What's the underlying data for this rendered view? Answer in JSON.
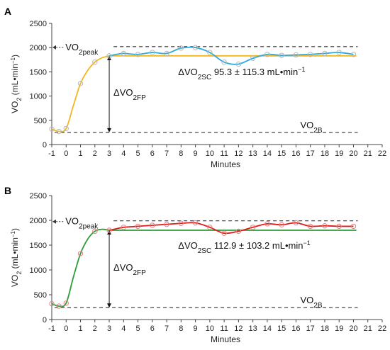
{
  "chart_data": [
    {
      "panel": "A",
      "type": "line",
      "xlabel": "Minutes",
      "ylabel": "VO",
      "ylabel_sub": "2",
      "ylabel_unit": "(mL•min",
      "ylabel_unit_sup": "−1",
      "ylabel_unit_end": ")",
      "xlim": [
        -1,
        22
      ],
      "ylim": [
        0,
        2500
      ],
      "x_ticks": [
        "-1",
        "0",
        "1",
        "2",
        "3",
        "4",
        "5",
        "6",
        "7",
        "8",
        "9",
        "10",
        "11",
        "12",
        "13",
        "14",
        "15",
        "16",
        "17",
        "18",
        "19",
        "20",
        "21",
        "22"
      ],
      "y_ticks": [
        "0",
        "500",
        "1000",
        "1500",
        "2000",
        "2500"
      ],
      "colors": {
        "onset": "#f2b71e",
        "steady": "#2ba8df",
        "fit": "#f2b71e",
        "points": "#b8b8b8"
      },
      "points": [
        {
          "x": -1,
          "y": 320
        },
        {
          "x": -0.5,
          "y": 270
        },
        {
          "x": 0,
          "y": 330
        },
        {
          "x": 1,
          "y": 1260
        },
        {
          "x": 2,
          "y": 1700
        },
        {
          "x": 3,
          "y": 1830
        },
        {
          "x": 4,
          "y": 1880
        },
        {
          "x": 5,
          "y": 1860
        },
        {
          "x": 6,
          "y": 1900
        },
        {
          "x": 7,
          "y": 1880
        },
        {
          "x": 8,
          "y": 1990
        },
        {
          "x": 9,
          "y": 2000
        },
        {
          "x": 10,
          "y": 1900
        },
        {
          "x": 11,
          "y": 1700
        },
        {
          "x": 12,
          "y": 1660
        },
        {
          "x": 13,
          "y": 1780
        },
        {
          "x": 14,
          "y": 1860
        },
        {
          "x": 15,
          "y": 1840
        },
        {
          "x": 16,
          "y": 1850
        },
        {
          "x": 17,
          "y": 1860
        },
        {
          "x": 18,
          "y": 1880
        },
        {
          "x": 19,
          "y": 1900
        },
        {
          "x": 20,
          "y": 1860
        }
      ],
      "onset_curve": [
        [
          -1,
          320
        ],
        [
          -0.5,
          270
        ],
        [
          0,
          330
        ],
        [
          0.5,
          800
        ],
        [
          1,
          1260
        ],
        [
          1.5,
          1530
        ],
        [
          2,
          1700
        ],
        [
          2.5,
          1790
        ],
        [
          3,
          1830
        ]
      ],
      "steady_curve": [
        [
          3,
          1830
        ],
        [
          3.5,
          1860
        ],
        [
          4,
          1880
        ],
        [
          5,
          1860
        ],
        [
          6,
          1900
        ],
        [
          7,
          1880
        ],
        [
          8,
          1990
        ],
        [
          9,
          2000
        ],
        [
          10,
          1900
        ],
        [
          11,
          1700
        ],
        [
          12,
          1660
        ],
        [
          13,
          1780
        ],
        [
          14,
          1860
        ],
        [
          15,
          1840
        ],
        [
          16,
          1850
        ],
        [
          17,
          1860
        ],
        [
          18,
          1880
        ],
        [
          19,
          1900
        ],
        [
          20,
          1860
        ]
      ],
      "fit_level": 1830,
      "peak_level": 2020,
      "baseline_level": 250,
      "label_peak": "VO",
      "label_peak_sub": "2peak",
      "label_base": "VO",
      "label_base_sub": "2B",
      "label_fp": "ΔVO",
      "label_fp_sub": "2FP",
      "label_sc": "ΔVO",
      "label_sc_sub": "2SC",
      "label_sc_value": "95.3 ± 115.3 mL•min",
      "label_sc_sup": "−1"
    },
    {
      "panel": "B",
      "type": "line",
      "xlabel": "Minutes",
      "ylabel": "VO",
      "ylabel_sub": "2",
      "ylabel_unit": "(mL•min",
      "ylabel_unit_sup": "−1",
      "ylabel_unit_end": ")",
      "xlim": [
        -1,
        22
      ],
      "ylim": [
        0,
        2500
      ],
      "x_ticks": [
        "-1",
        "0",
        "1",
        "2",
        "3",
        "4",
        "5",
        "6",
        "7",
        "8",
        "9",
        "10",
        "11",
        "12",
        "13",
        "14",
        "15",
        "16",
        "17",
        "18",
        "19",
        "20",
        "21",
        "22"
      ],
      "y_ticks": [
        "0",
        "500",
        "1000",
        "1500",
        "2000",
        "2500"
      ],
      "colors": {
        "onset": "#2a9d3a",
        "steady": "#e01b1b",
        "fit": "#2a9d3a",
        "points": "#e88080"
      },
      "points": [
        {
          "x": -1,
          "y": 320
        },
        {
          "x": -0.5,
          "y": 270
        },
        {
          "x": 0,
          "y": 330
        },
        {
          "x": 1,
          "y": 1330
        },
        {
          "x": 2,
          "y": 1780
        },
        {
          "x": 3,
          "y": 1800
        },
        {
          "x": 4,
          "y": 1860
        },
        {
          "x": 5,
          "y": 1880
        },
        {
          "x": 6,
          "y": 1900
        },
        {
          "x": 7,
          "y": 1920
        },
        {
          "x": 8,
          "y": 1940
        },
        {
          "x": 9,
          "y": 1950
        },
        {
          "x": 10,
          "y": 1860
        },
        {
          "x": 11,
          "y": 1740
        },
        {
          "x": 12,
          "y": 1780
        },
        {
          "x": 13,
          "y": 1860
        },
        {
          "x": 14,
          "y": 1930
        },
        {
          "x": 15,
          "y": 1910
        },
        {
          "x": 16,
          "y": 1950
        },
        {
          "x": 17,
          "y": 1880
        },
        {
          "x": 18,
          "y": 1890
        },
        {
          "x": 19,
          "y": 1880
        },
        {
          "x": 20,
          "y": 1880
        }
      ],
      "onset_curve": [
        [
          -1,
          320
        ],
        [
          -0.5,
          270
        ],
        [
          0,
          330
        ],
        [
          0.5,
          850
        ],
        [
          1,
          1330
        ],
        [
          1.5,
          1620
        ],
        [
          2,
          1780
        ],
        [
          2.5,
          1820
        ],
        [
          3,
          1800
        ]
      ],
      "steady_curve": [
        [
          3,
          1800
        ],
        [
          3.5,
          1830
        ],
        [
          4,
          1860
        ],
        [
          5,
          1880
        ],
        [
          6,
          1900
        ],
        [
          7,
          1920
        ],
        [
          8,
          1940
        ],
        [
          9,
          1950
        ],
        [
          10,
          1860
        ],
        [
          11,
          1740
        ],
        [
          12,
          1780
        ],
        [
          13,
          1860
        ],
        [
          14,
          1930
        ],
        [
          15,
          1910
        ],
        [
          16,
          1950
        ],
        [
          17,
          1880
        ],
        [
          18,
          1890
        ],
        [
          19,
          1880
        ],
        [
          20,
          1880
        ]
      ],
      "fit_level": 1800,
      "peak_level": 1990,
      "baseline_level": 240,
      "label_peak": "VO",
      "label_peak_sub": "2peak",
      "label_base": "VO",
      "label_base_sub": "2B",
      "label_fp": "ΔVO",
      "label_fp_sub": "2FP",
      "label_sc": "ΔVO",
      "label_sc_sub": "2SC",
      "label_sc_value": "112.9 ± 103.2 mL•min",
      "label_sc_sup": "−1"
    }
  ]
}
